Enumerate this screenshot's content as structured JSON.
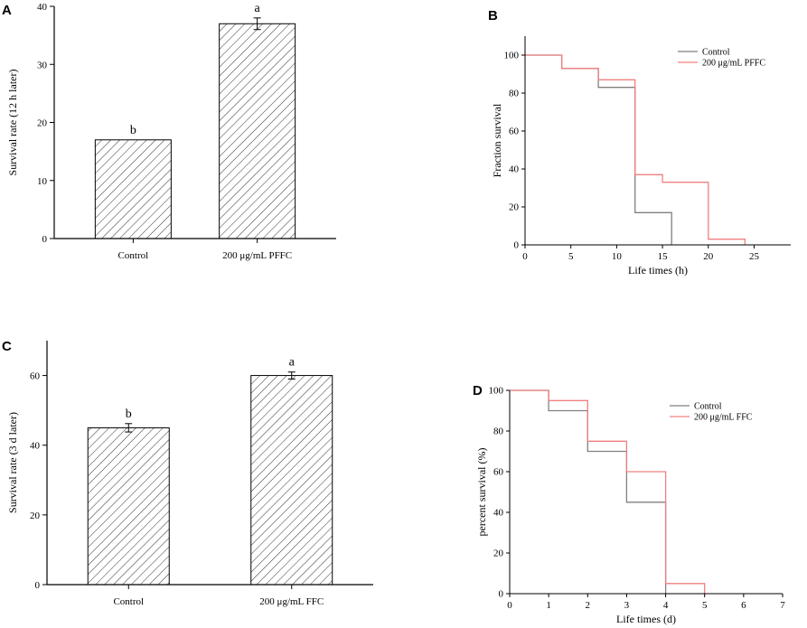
{
  "chart_data": [
    {
      "panel": "A",
      "type": "bar",
      "categories": [
        "Control",
        "200 μg/mL PFFC"
      ],
      "values": [
        17,
        37
      ],
      "errors": [
        0,
        1
      ],
      "significance": [
        "b",
        "a"
      ],
      "xlabel": "",
      "ylabel": "Survival rate (12 h later)",
      "ylim": [
        0,
        40
      ],
      "yticks": [
        0,
        10,
        20,
        30,
        40
      ]
    },
    {
      "panel": "B",
      "type": "line",
      "step": true,
      "xlabel": "Life times (h)",
      "ylabel": "Fraction survival",
      "xlim": [
        0,
        29
      ],
      "ylim": [
        0,
        110
      ],
      "xticks": [
        0,
        5,
        10,
        15,
        20,
        25
      ],
      "yticks": [
        0,
        20,
        40,
        60,
        80,
        100
      ],
      "legend_position": "top-right",
      "series": [
        {
          "name": "Control",
          "color": "#808080",
          "points": [
            [
              0,
              100
            ],
            [
              4,
              100
            ],
            [
              4,
              93
            ],
            [
              8,
              93
            ],
            [
              8,
              83
            ],
            [
              12,
              83
            ],
            [
              12,
              17
            ],
            [
              16,
              17
            ],
            [
              16,
              0
            ]
          ]
        },
        {
          "name": "200 μg/mL PFFC",
          "color": "#f08080",
          "points": [
            [
              0,
              100
            ],
            [
              4,
              100
            ],
            [
              4,
              93
            ],
            [
              8,
              93
            ],
            [
              8,
              87
            ],
            [
              12,
              87
            ],
            [
              12,
              37
            ],
            [
              15,
              37
            ],
            [
              15,
              33
            ],
            [
              20,
              33
            ],
            [
              20,
              3
            ],
            [
              24,
              3
            ],
            [
              24,
              0
            ]
          ]
        }
      ]
    },
    {
      "panel": "C",
      "type": "bar",
      "categories": [
        "Control",
        "200 μg/mL FFC"
      ],
      "values": [
        45,
        60
      ],
      "errors": [
        1.2,
        1
      ],
      "significance": [
        "b",
        "a"
      ],
      "xlabel": "",
      "ylabel": "Survival rate (3 d later)",
      "ylim": [
        0,
        70
      ],
      "yticks": [
        0,
        20,
        40,
        60
      ]
    },
    {
      "panel": "D",
      "type": "line",
      "step": true,
      "xlabel": "Life times (d)",
      "ylabel": "percent survival (%)",
      "xlim": [
        0,
        7
      ],
      "ylim": [
        0,
        100
      ],
      "xticks": [
        0,
        1,
        2,
        3,
        4,
        5,
        6,
        7
      ],
      "yticks": [
        0,
        20,
        40,
        60,
        80,
        100
      ],
      "legend_position": "top-right",
      "series": [
        {
          "name": "Control",
          "color": "#808080",
          "points": [
            [
              0,
              100
            ],
            [
              1,
              100
            ],
            [
              1,
              90
            ],
            [
              2,
              90
            ],
            [
              2,
              70
            ],
            [
              3,
              70
            ],
            [
              3,
              45
            ],
            [
              4,
              45
            ],
            [
              4,
              0
            ]
          ]
        },
        {
          "name": "200 μg/mL FFC",
          "color": "#f08080",
          "points": [
            [
              0,
              100
            ],
            [
              1,
              100
            ],
            [
              1,
              95
            ],
            [
              2,
              95
            ],
            [
              2,
              75
            ],
            [
              3,
              75
            ],
            [
              3,
              60
            ],
            [
              4,
              60
            ],
            [
              4,
              5
            ],
            [
              5,
              5
            ],
            [
              5,
              0
            ]
          ]
        }
      ]
    }
  ]
}
